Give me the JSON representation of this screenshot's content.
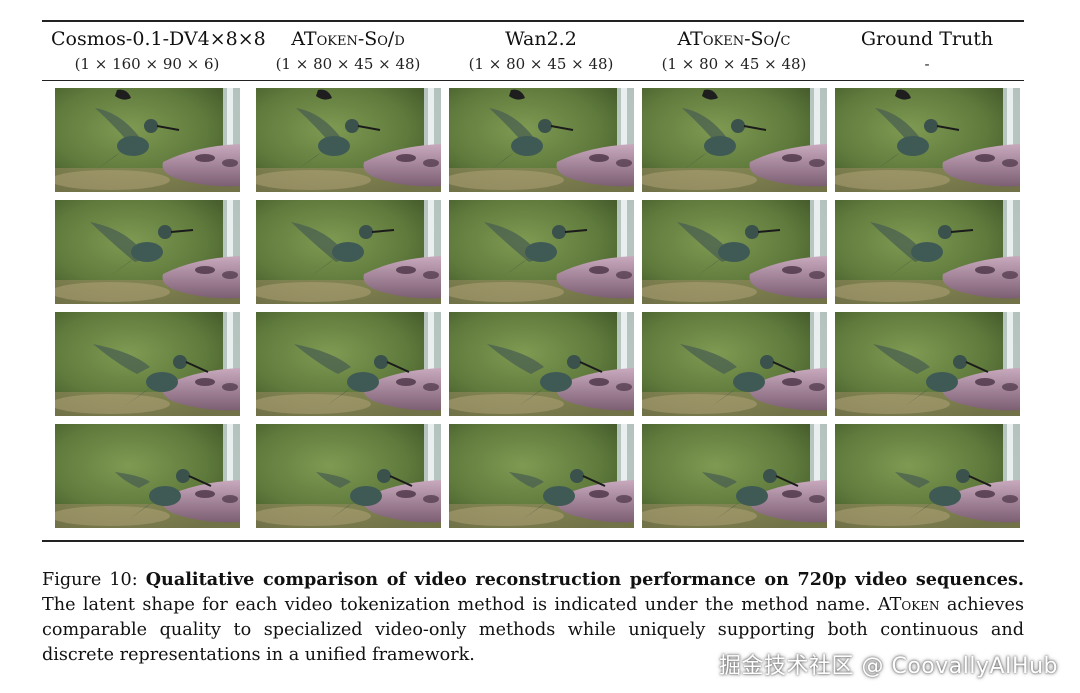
{
  "columns": [
    {
      "name_main": "Cosmos-0.1-DV4×8×8",
      "name_sc": "",
      "name_tail": "",
      "shape": "(1 × 160 × 90 × 6)"
    },
    {
      "name_main": "AT",
      "name_sc": "oken",
      "name_tail": "-So/d",
      "shape": "(1 × 80 × 45 × 48)"
    },
    {
      "name_main": "Wan2.2",
      "name_sc": "",
      "name_tail": "",
      "shape": "(1 × 80 × 45 × 48)"
    },
    {
      "name_main": "AT",
      "name_sc": "oken",
      "name_tail": "-So/c",
      "shape": "(1 × 80 × 45 × 48)"
    },
    {
      "name_main": "Ground Truth",
      "name_sc": "",
      "name_tail": "",
      "shape": "-"
    }
  ],
  "rows": 4,
  "caption": {
    "label": "Figure 10:",
    "bold": "Qualitative comparison of video reconstruction performance on 720p video sequences.",
    "text1": "The latent shape for each video tokenization method is indicated under the method name. AT",
    "sc": "oken",
    "text2": "achieves comparable quality to specialized video-only methods while uniquely supporting both continuous and discrete representations in a unified framework."
  },
  "watermark": "掘金技术社区 @ CoovallyAIHub",
  "colors": {
    "background_green": "#5f7a3c",
    "feeder_pink": "#b08aa3",
    "bird_teal": "#3f5a55"
  }
}
